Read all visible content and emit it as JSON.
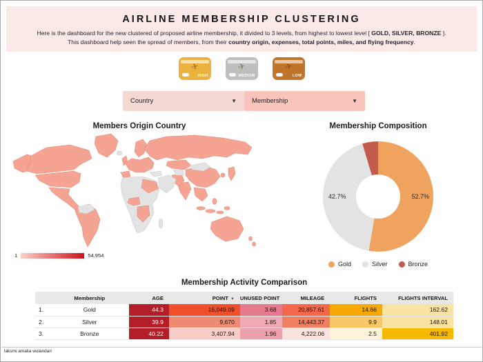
{
  "page": {
    "footer": "laksmi amalia wulandari"
  },
  "header": {
    "title": "AIRLINE MEMBERSHIP CLUSTERING",
    "desc1_pre": "Here is the dashboard for the new clustered of proposed airline membership, it divided to 3 levels, from highest to lowest level [ ",
    "desc1_bold": "GOLD, SILVER, BRONZE",
    "desc1_post": " ].",
    "desc2_pre": "This dashboard help seen the spread of members, from their ",
    "desc2_bold": "country origin, expenses, total points, miles, and flying frequency",
    "desc2_post": "."
  },
  "cards": [
    {
      "label": "HIGH",
      "color": "#EBB23D"
    },
    {
      "label": "MEDIUM",
      "color": "#BEBEBE"
    },
    {
      "label": "LOW",
      "color": "#C0752B"
    }
  ],
  "filters": [
    {
      "label": "Country",
      "bg": "#F4D8D4"
    },
    {
      "label": "Membership",
      "bg": "#F9C4BB"
    }
  ],
  "map": {
    "title": "Members Origin Country",
    "legend_min": "1",
    "legend_max": "54,954",
    "fill": "#F5A493",
    "nodata": "#E3E3E3",
    "stroke": "#E08F7E",
    "gradient_from": "#FAD2CB",
    "gradient_to": "#CE1318"
  },
  "chart_data": [
    {
      "type": "pie",
      "subtype": "donut",
      "title": "Membership Composition",
      "labels": [
        "Gold",
        "Silver",
        "Bronze"
      ],
      "values": [
        52.7,
        42.7,
        4.6
      ],
      "colors": [
        "#F0A35F",
        "#E3E3E3",
        "#C35B4D"
      ],
      "data_labels": [
        "52.7%",
        "42.7%"
      ],
      "legend_position": "bottom",
      "start_angle_deg": 0,
      "direction": "clockwise"
    },
    {
      "type": "heatmap",
      "subtype": "world-choropleth",
      "title": "Members Origin Country",
      "scale_min_label": "1",
      "scale_max_label": "54,954",
      "scale_min": 1,
      "scale_max": 54954
    },
    {
      "type": "table",
      "title": "Membership Activity Comparison",
      "columns": [
        "",
        "Membership",
        "AGE",
        "POINT",
        "UNUSED POINT",
        "MILEAGE",
        "FLIGHTS",
        "FLIGHTS INTERVAL"
      ],
      "sorted_by": "POINT",
      "rows": [
        {
          "index": "1.",
          "membership": "Gold",
          "values": [
            "44.3",
            "16,049.09",
            "3.68",
            "20,857.61",
            "14.66",
            "162.62"
          ],
          "cell_bg": [
            "#B31E28",
            "#F04F2B",
            "#E5798D",
            "#F4674B",
            "#F6A903",
            "#F8E3A2"
          ],
          "cell_fg": [
            "#FFFFFF",
            "#1F1208",
            "#1F1208",
            "#1F1208",
            "#1F1208",
            "#1F1208"
          ]
        },
        {
          "index": "2.",
          "membership": "Silver",
          "values": [
            "39.9",
            "9,670",
            "1.85",
            "14,443.37",
            "9.9",
            "148.01"
          ],
          "cell_bg": [
            "#B31E28",
            "#ED8A72",
            "#EFA9B4",
            "#F07F62",
            "#F8C766",
            "#F8E3A2"
          ],
          "cell_fg": [
            "#FFFFFF",
            "#1F1208",
            "#1F1208",
            "#1F1208",
            "#1F1208",
            "#1F1208"
          ]
        },
        {
          "index": "3.",
          "membership": "Bronze",
          "values": [
            "40.22",
            "3,407.94",
            "1.96",
            "4,222.06",
            "2.5",
            "401.92"
          ],
          "cell_bg": [
            "#B31E28",
            "#F7CDC7",
            "#EBA2AE",
            "#FAE3DE",
            "#FCF3DB",
            "#F4B800"
          ],
          "cell_fg": [
            "#FFFFFF",
            "#1F1208",
            "#1F1208",
            "#1F1208",
            "#1F1208",
            "#1F1208"
          ]
        }
      ]
    }
  ]
}
